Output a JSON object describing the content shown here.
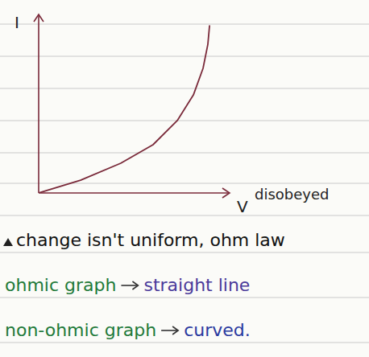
{
  "chart_data": {
    "type": "line",
    "x_label": "V",
    "y_label": "I",
    "x": [
      0,
      2.26,
      4.43,
      6.17,
      7.48,
      8.35,
      8.87,
      9.13,
      9.22
    ],
    "values": [
      0,
      0.74,
      1.72,
      2.79,
      4.19,
      5.67,
      7.21,
      8.6,
      9.67
    ],
    "color": "#7a2a3a",
    "xlim": [
      0,
      10
    ],
    "ylim": [
      0,
      10
    ],
    "tick_labels": false,
    "grid": false,
    "annotations": [
      {
        "text": "disobeyed",
        "color": "#222222"
      },
      {
        "text": "change isn't uniform, ohm law",
        "color": "#111111"
      },
      {
        "text": "ohmic graph",
        "color": "#1f7a3a"
      },
      {
        "text": "straight line",
        "color": "#4a3a9a"
      },
      {
        "text": "non-ohmic graph",
        "color": "#1f7a3a"
      },
      {
        "text": "curved.",
        "color": "#2a3aa0"
      }
    ]
  }
}
